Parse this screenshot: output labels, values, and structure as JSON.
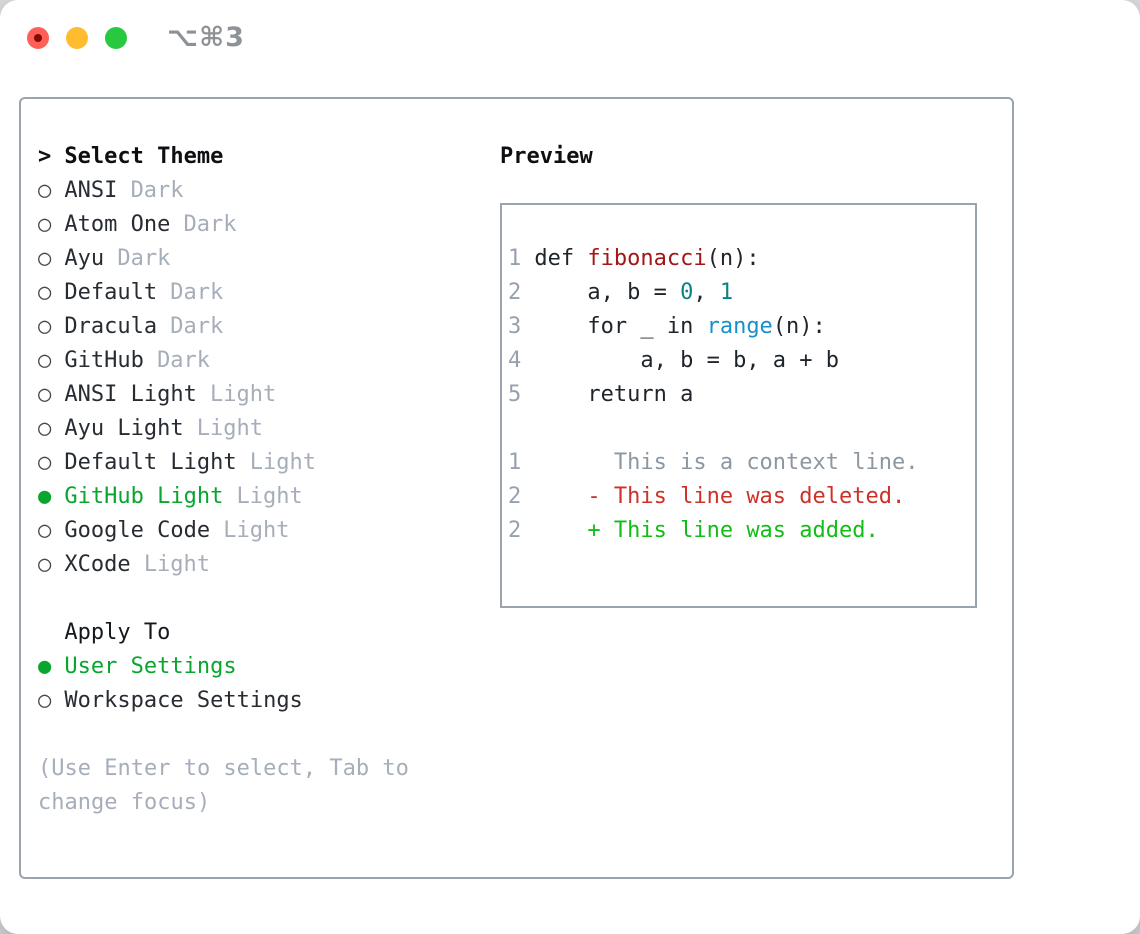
{
  "window": {
    "title": "⌥⌘3"
  },
  "icons": {
    "radio_on": "●",
    "radio_off": "○",
    "header_prefix": ">"
  },
  "colors": {
    "selection_green": "#0aa52f",
    "added_green": "#12bd17",
    "deleted_red": "#cd3228",
    "function_red": "#a31616",
    "number_teal": "#0d8181",
    "builtin_blue": "#1690ca",
    "muted_gray": "#a6aeba",
    "line_number_gray": "#97a1ad",
    "border_gray": "#9aa3ae",
    "traffic_red": "#ff5f57",
    "traffic_yellow": "#febc2e",
    "traffic_green": "#28c840"
  },
  "theme_picker": {
    "header": "Select Theme",
    "themes": [
      {
        "name": "ANSI",
        "variant": "Dark",
        "selected": false
      },
      {
        "name": "Atom One",
        "variant": "Dark",
        "selected": false
      },
      {
        "name": "Ayu",
        "variant": "Dark",
        "selected": false
      },
      {
        "name": "Default",
        "variant": "Dark",
        "selected": false
      },
      {
        "name": "Dracula",
        "variant": "Dark",
        "selected": false
      },
      {
        "name": "GitHub",
        "variant": "Dark",
        "selected": false
      },
      {
        "name": "ANSI Light",
        "variant": "Light",
        "selected": false
      },
      {
        "name": "Ayu Light",
        "variant": "Light",
        "selected": false
      },
      {
        "name": "Default Light",
        "variant": "Light",
        "selected": false
      },
      {
        "name": "GitHub Light",
        "variant": "Light",
        "selected": true
      },
      {
        "name": "Google Code",
        "variant": "Light",
        "selected": false
      },
      {
        "name": "XCode",
        "variant": "Light",
        "selected": false
      }
    ],
    "apply_to": {
      "header": "Apply To",
      "options": [
        {
          "label": "User Settings",
          "selected": true
        },
        {
          "label": "Workspace Settings",
          "selected": false
        }
      ]
    },
    "help": [
      "(Use Enter to select, Tab to",
      "change focus)"
    ]
  },
  "preview": {
    "header": "Preview",
    "code": [
      {
        "num": "1",
        "s0": "def ",
        "s1": "fibonacci",
        "s2": "(n):"
      },
      {
        "num": "2",
        "s0": "    a, b = ",
        "s1": "0",
        "s2": ", ",
        "s3": "1"
      },
      {
        "num": "3",
        "s0": "    for _ in ",
        "s1": "range",
        "s2": "(n):"
      },
      {
        "num": "4",
        "s0": "        a, b = b, a + b"
      },
      {
        "num": "5",
        "s0": "    return a"
      }
    ],
    "diff": [
      {
        "num": "1",
        "type": "context",
        "text": "      This is a context line."
      },
      {
        "num": "2",
        "type": "deleted",
        "text": "    - This line was deleted."
      },
      {
        "num": "2",
        "type": "added",
        "text": "    + This line was added."
      }
    ]
  }
}
